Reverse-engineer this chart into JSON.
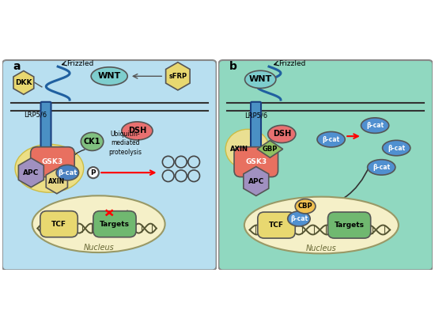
{
  "panel_a": {
    "bg_color": "#b8dff0",
    "label": "a",
    "receptor_color": "#4a90c4",
    "wnt_color": "#7ecece",
    "wnt_label": "WNT",
    "sfrp_color": "#e8d870",
    "sfrp_label": "sFRP",
    "dkk_color": "#e8d870",
    "dkk_label": "DKK",
    "lrp_label": "LRP5/6",
    "dsh_color": "#e87070",
    "dsh_label": "DSH",
    "ck1_color": "#80c080",
    "ck1_label": "CK1",
    "gsk3_color": "#e87060",
    "gsk3_label": "GSK3",
    "bcat_color": "#4a80c0",
    "bcat_label": "β-cat",
    "apc_color": "#a090c0",
    "apc_label": "APC",
    "axin_label": "AXIN",
    "complex_bg": "#f0e080",
    "phospho_label": "P",
    "ubiquitin_text": "Ubiquitin-\nmediated\nproteolysis",
    "nucleus_color": "#f5f0c8",
    "tcf_color": "#e8d870",
    "tcf_label": "TCF",
    "targets_color": "#70b870",
    "targets_label": "Targets",
    "nucleus_label": "Nucleus"
  },
  "panel_b": {
    "bg_color": "#90d8c0",
    "label": "b",
    "receptor_color": "#4a90c4",
    "wnt_color": "#7ecece",
    "wnt_label": "WNT",
    "lrp_label": "LRP5/6",
    "axin_color": "#f0e090",
    "axin_label": "AXIN",
    "dsh_color": "#e87070",
    "dsh_label": "DSH",
    "gbp_color": "#90c060",
    "gbp_label": "GBP",
    "gsk3_color": "#e87060",
    "gsk3_label": "GSK3",
    "apc_color": "#a090c0",
    "apc_label": "APC",
    "bcat_color": "#5090d0",
    "bcat_label": "β-cat",
    "cbp_color": "#f0c050",
    "cbp_label": "CBP",
    "nucleus_color": "#f5f0c8",
    "tcf_color": "#e8d870",
    "tcf_label": "TCF",
    "targets_color": "#70b870",
    "targets_label": "Targets",
    "nucleus_label": "Nucleus"
  }
}
